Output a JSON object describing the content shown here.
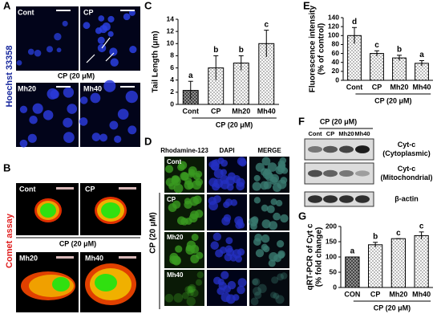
{
  "figure": {
    "A": {
      "label": "A",
      "cont": "Cont",
      "cp": "CP",
      "group": "CP (20 μM)",
      "mh20": "Mh20",
      "mh40": "Mh40",
      "stain": "Hoechst 33358"
    },
    "B": {
      "label": "B",
      "cont": "Cont",
      "cp": "CP",
      "group": "CP (20 μM)",
      "mh20": "Mh20",
      "mh40": "Mh40",
      "assay": "Comet assay"
    },
    "D": {
      "label": "D",
      "columns": [
        "Rhodamine-123",
        "DAPI",
        "MERGE"
      ],
      "rows": [
        "Cont",
        "CP",
        "Mh20",
        "Mh40"
      ],
      "group": "CP (20 μM)"
    },
    "F": {
      "label": "F",
      "group": "CP (20 μM)",
      "lanes": [
        "Cont",
        "CP",
        "Mh20",
        "Mh40"
      ],
      "bands": [
        [
          "Cyt-c",
          "(Cytoplasmic)"
        ],
        [
          "Cyt-c",
          "(Mitochondrial)"
        ],
        [
          "β-actin"
        ]
      ]
    }
  },
  "chart_data": [
    {
      "type": "bar",
      "label": "C",
      "ylabel": [
        "Tail Length (μm)"
      ],
      "categories": [
        "Cont",
        "CP",
        "Mh20",
        "Mh40"
      ],
      "values": [
        2.3,
        6,
        6.8,
        10
      ],
      "errors": [
        1.5,
        2,
        1.2,
        2.2
      ],
      "letters": [
        "a",
        "b",
        "b",
        "c"
      ],
      "colors": [
        "#444444",
        "#ffffff",
        "#ffffff",
        "#ffffff"
      ],
      "group": "CP (20 μM)",
      "ylim": [
        0,
        14
      ],
      "yticks": [
        0,
        2,
        4,
        6,
        8,
        10,
        12,
        14
      ]
    },
    {
      "type": "bar",
      "label": "E",
      "ylabel": [
        "Fluorescence intensity",
        "(% of control)"
      ],
      "categories": [
        "Cont",
        "CP",
        "Mh20",
        "Mh40"
      ],
      "values": [
        100,
        60,
        50,
        38
      ],
      "errors": [
        18,
        6,
        6,
        6
      ],
      "letters": [
        "d",
        "c",
        "b",
        "a"
      ],
      "colors": [
        "#ffffff",
        "#ffffff",
        "#ffffff",
        "#ffffff"
      ],
      "group": "CP (20 μM)",
      "ylim": [
        0,
        140
      ],
      "yticks": [
        0,
        20,
        40,
        60,
        80,
        100,
        120,
        140
      ]
    },
    {
      "type": "bar",
      "label": "G",
      "ylabel": [
        "qRT-PCR of Cyt c",
        "(% fold change)"
      ],
      "categories": [
        "CON",
        "CP",
        "Mh20",
        "Mh40"
      ],
      "values": [
        100,
        140,
        160,
        170
      ],
      "errors": [
        0,
        8,
        0,
        12
      ],
      "letters": [
        "a",
        "b",
        "c",
        "c"
      ],
      "colors": [
        "#444444",
        "#ffffff",
        "#ffffff",
        "#ffffff"
      ],
      "group": "CP (20 μM)",
      "ylim": [
        0,
        200
      ],
      "yticks": [
        0,
        50,
        100,
        150,
        200
      ]
    }
  ]
}
